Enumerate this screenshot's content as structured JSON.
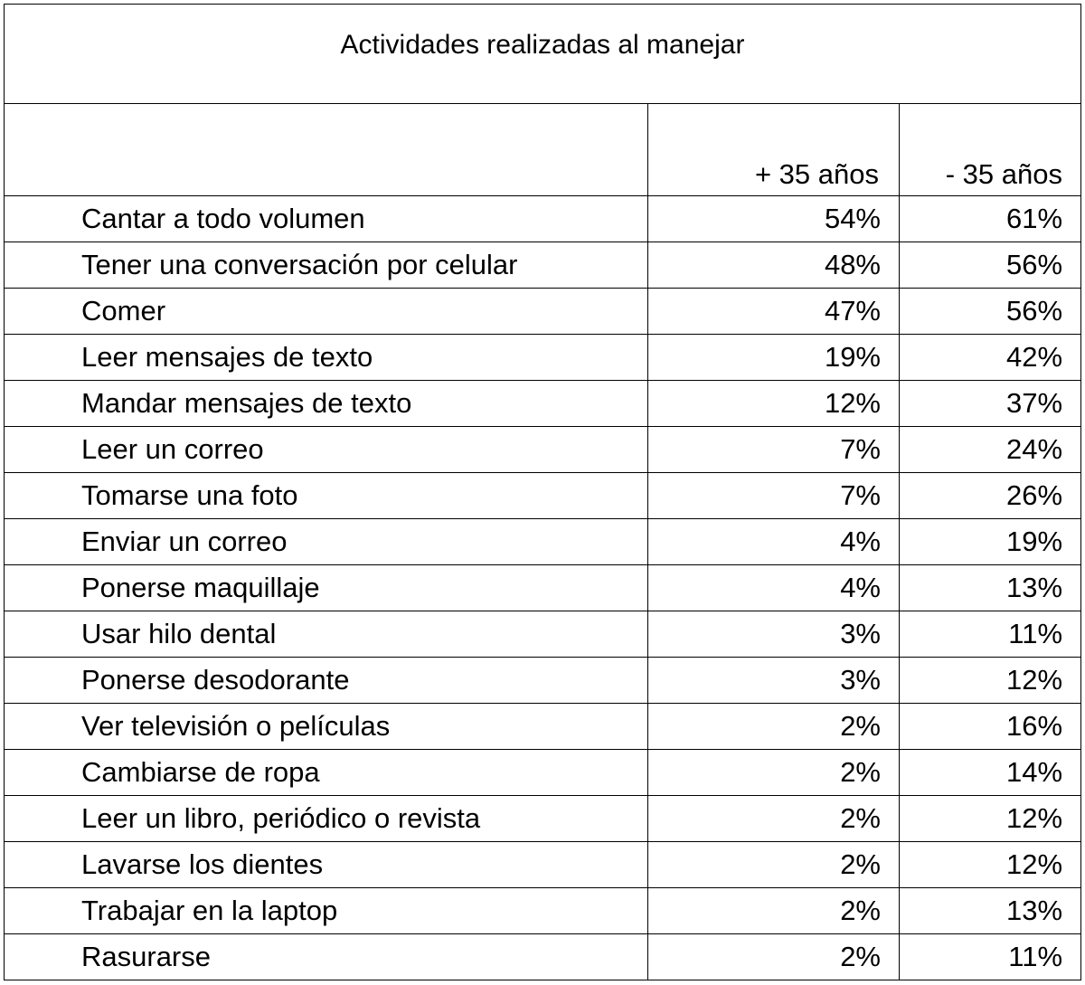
{
  "chart_data": {
    "type": "table",
    "title": "Actividades realizadas al manejar",
    "columns": [
      "",
      "+ 35 años",
      "- 35 años"
    ],
    "series": [
      {
        "name": "+ 35 años",
        "values": [
          54,
          48,
          47,
          19,
          12,
          7,
          7,
          4,
          4,
          3,
          3,
          2,
          2,
          2,
          2,
          2,
          2
        ]
      },
      {
        "name": "- 35 años",
        "values": [
          61,
          56,
          56,
          42,
          37,
          24,
          26,
          19,
          13,
          11,
          12,
          16,
          14,
          12,
          12,
          13,
          11
        ]
      }
    ],
    "rows": [
      {
        "activity": "Cantar a todo volumen",
        "older": "54%",
        "younger": "61%"
      },
      {
        "activity": "Tener una conversación por celular",
        "older": "48%",
        "younger": "56%"
      },
      {
        "activity": "Comer",
        "older": "47%",
        "younger": "56%"
      },
      {
        "activity": "Leer mensajes de texto",
        "older": "19%",
        "younger": "42%"
      },
      {
        "activity": "Mandar mensajes de texto",
        "older": "12%",
        "younger": "37%"
      },
      {
        "activity": "Leer un correo",
        "older": "7%",
        "younger": "24%"
      },
      {
        "activity": "Tomarse una foto",
        "older": "7%",
        "younger": "26%"
      },
      {
        "activity": "Enviar un correo",
        "older": "4%",
        "younger": "19%"
      },
      {
        "activity": "Ponerse maquillaje",
        "older": "4%",
        "younger": "13%"
      },
      {
        "activity": "Usar hilo dental",
        "older": "3%",
        "younger": "11%"
      },
      {
        "activity": "Ponerse desodorante",
        "older": "3%",
        "younger": "12%"
      },
      {
        "activity": "Ver televisión o películas",
        "older": "2%",
        "younger": "16%"
      },
      {
        "activity": "Cambiarse de ropa",
        "older": "2%",
        "younger": "14%"
      },
      {
        "activity": "Leer un libro, periódico o revista",
        "older": "2%",
        "younger": "12%"
      },
      {
        "activity": "Lavarse los dientes",
        "older": "2%",
        "younger": "12%"
      },
      {
        "activity": "Trabajar en la laptop",
        "older": "2%",
        "younger": "13%"
      },
      {
        "activity": "Rasurarse",
        "older": "2%",
        "younger": "11%"
      }
    ]
  }
}
